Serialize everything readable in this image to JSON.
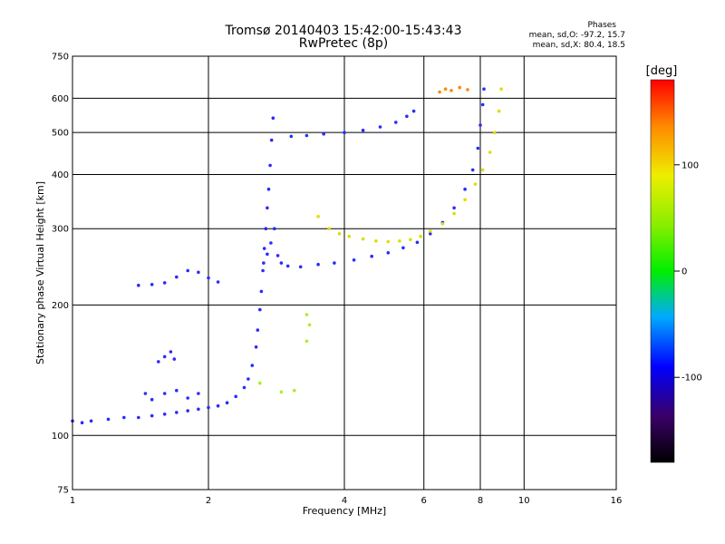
{
  "header": {
    "title": "Tromsø 20140403 15:42:00-15:43:43",
    "subtitle": "RwPretec (8p)",
    "phases_title": "Phases",
    "stat_o": "mean, sd,O: -97.2, 15.7",
    "stat_x": "mean, sd,X:  80.4, 18.5"
  },
  "chart_data": {
    "type": "scatter",
    "title": "Tromsø 20140403 15:42:00-15:43:43",
    "subtitle": "RwPretec (8p)",
    "xlabel": "Frequency [MHz]",
    "ylabel": "Stationary phase Virtual Height [km]",
    "x_scale": "log",
    "y_scale": "log",
    "xlim": [
      1,
      16
    ],
    "ylim": [
      75,
      750
    ],
    "x_ticks": [
      1,
      2,
      4,
      6,
      8,
      10,
      16
    ],
    "y_ticks": [
      75,
      100,
      200,
      300,
      400,
      500,
      600,
      750
    ],
    "grid": true,
    "colorbar": {
      "label": "[deg]",
      "range": [
        -180,
        180
      ],
      "ticks": [
        100,
        0,
        -100
      ]
    },
    "series": [
      {
        "color": "#2a2aff",
        "phase": -100,
        "points": [
          [
            1.0,
            108
          ],
          [
            1.05,
            107
          ],
          [
            1.1,
            108
          ],
          [
            1.2,
            109
          ],
          [
            1.3,
            110
          ],
          [
            1.4,
            110
          ],
          [
            1.5,
            111
          ],
          [
            1.6,
            112
          ],
          [
            1.7,
            113
          ],
          [
            1.8,
            114
          ],
          [
            1.9,
            115
          ],
          [
            2.0,
            116
          ],
          [
            2.1,
            117
          ],
          [
            2.2,
            119
          ],
          [
            2.3,
            123
          ],
          [
            2.4,
            129
          ],
          [
            2.45,
            135
          ],
          [
            2.5,
            145
          ],
          [
            2.55,
            160
          ],
          [
            2.57,
            175
          ],
          [
            2.6,
            195
          ],
          [
            2.62,
            215
          ],
          [
            2.64,
            240
          ],
          [
            2.66,
            270
          ],
          [
            2.68,
            300
          ],
          [
            2.7,
            335
          ],
          [
            2.72,
            370
          ],
          [
            2.74,
            420
          ],
          [
            2.76,
            480
          ],
          [
            2.78,
            540
          ]
        ]
      },
      {
        "color": "#2a2aff",
        "phase": -100,
        "points": [
          [
            2.65,
            250
          ],
          [
            2.7,
            262
          ],
          [
            2.75,
            278
          ],
          [
            2.8,
            300
          ],
          [
            2.85,
            260
          ],
          [
            2.9,
            250
          ],
          [
            3.0,
            246
          ],
          [
            3.2,
            245
          ],
          [
            3.5,
            248
          ],
          [
            3.8,
            250
          ],
          [
            4.2,
            254
          ],
          [
            4.6,
            259
          ],
          [
            5.0,
            264
          ],
          [
            5.4,
            271
          ],
          [
            5.8,
            279
          ],
          [
            6.2,
            292
          ],
          [
            6.6,
            310
          ],
          [
            7.0,
            335
          ],
          [
            7.4,
            370
          ],
          [
            7.7,
            410
          ],
          [
            7.9,
            460
          ],
          [
            8.0,
            520
          ],
          [
            8.1,
            580
          ],
          [
            8.15,
            630
          ]
        ]
      },
      {
        "color": "#2a2aff",
        "phase": -100,
        "points": [
          [
            3.05,
            490
          ],
          [
            3.3,
            492
          ],
          [
            3.6,
            496
          ],
          [
            4.0,
            500
          ],
          [
            4.4,
            506
          ],
          [
            4.8,
            515
          ],
          [
            5.2,
            528
          ],
          [
            5.5,
            545
          ],
          [
            5.7,
            560
          ]
        ]
      },
      {
        "color": "#2a2aff",
        "phase": -100,
        "points": [
          [
            1.4,
            222
          ],
          [
            1.5,
            223
          ],
          [
            1.6,
            225
          ],
          [
            1.7,
            232
          ],
          [
            1.8,
            240
          ],
          [
            1.9,
            238
          ],
          [
            2.0,
            231
          ],
          [
            2.1,
            226
          ]
        ]
      },
      {
        "color": "#2a2aff",
        "phase": -100,
        "points": [
          [
            1.55,
            148
          ],
          [
            1.6,
            152
          ],
          [
            1.65,
            156
          ],
          [
            1.68,
            150
          ],
          [
            1.6,
            125
          ],
          [
            1.7,
            127
          ],
          [
            1.8,
            122
          ],
          [
            1.9,
            125
          ],
          [
            1.45,
            125
          ],
          [
            1.5,
            121
          ]
        ]
      },
      {
        "color": "#dddd00",
        "phase": 100,
        "points": [
          [
            3.5,
            320
          ],
          [
            3.7,
            300
          ],
          [
            3.9,
            292
          ],
          [
            4.1,
            288
          ],
          [
            4.4,
            284
          ],
          [
            4.7,
            281
          ],
          [
            5.0,
            280
          ],
          [
            5.3,
            281
          ],
          [
            5.6,
            283
          ],
          [
            5.9,
            288
          ],
          [
            6.2,
            296
          ],
          [
            6.6,
            308
          ],
          [
            7.0,
            325
          ],
          [
            7.4,
            350
          ],
          [
            7.8,
            380
          ],
          [
            8.1,
            410
          ],
          [
            8.4,
            450
          ],
          [
            8.6,
            500
          ],
          [
            8.8,
            560
          ],
          [
            8.9,
            630
          ]
        ]
      },
      {
        "color": "#aaee22",
        "phase": 80,
        "points": [
          [
            2.6,
            132
          ],
          [
            2.9,
            126
          ],
          [
            3.1,
            127
          ],
          [
            3.3,
            165
          ],
          [
            3.35,
            180
          ],
          [
            3.3,
            190
          ]
        ]
      },
      {
        "color": "#ff8800",
        "phase": 130,
        "points": [
          [
            6.5,
            620
          ],
          [
            6.7,
            630
          ],
          [
            6.9,
            625
          ],
          [
            7.2,
            635
          ],
          [
            7.5,
            628
          ]
        ]
      }
    ]
  }
}
